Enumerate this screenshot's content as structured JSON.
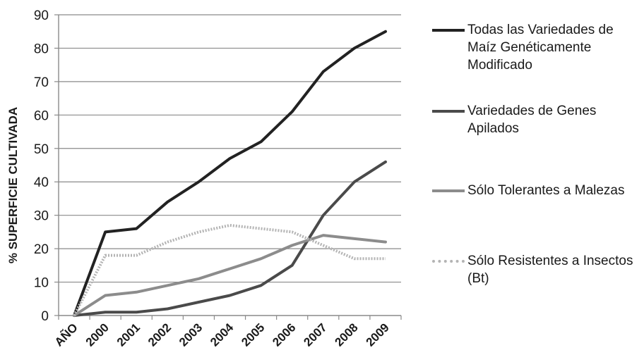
{
  "chart_data": {
    "type": "line",
    "title": "",
    "xlabel": "",
    "ylabel": "% SUPERFICIE CULTIVADA",
    "categories": [
      "AÑO",
      "2000",
      "2001",
      "2002",
      "2003",
      "2004",
      "2005",
      "2006",
      "2007",
      "2008",
      "2009"
    ],
    "ylim": [
      0,
      90
    ],
    "yticks": [
      0,
      10,
      20,
      30,
      40,
      50,
      60,
      70,
      80,
      90
    ],
    "grid": "horizontal",
    "legend_position": "right",
    "series": [
      {
        "name": "Todas las Variedades de Maíz Genéticamente Modificado",
        "color": "#222222",
        "style": "solid",
        "values": [
          0,
          25,
          26,
          34,
          40,
          47,
          52,
          61,
          73,
          80,
          85
        ]
      },
      {
        "name": "Variedades de Genes Apilados",
        "color": "#4a4a4a",
        "style": "solid",
        "values": [
          0,
          1,
          1,
          2,
          4,
          6,
          9,
          15,
          30,
          40,
          46
        ]
      },
      {
        "name": "Sólo Tolerantes a Malezas",
        "color": "#8c8c8c",
        "style": "solid",
        "values": [
          0,
          6,
          7,
          9,
          11,
          14,
          17,
          21,
          24,
          23,
          22
        ]
      },
      {
        "name": "Sólo Resistentes a Insectos (Bt)",
        "color": "#b4b4b4",
        "style": "dotted",
        "values": [
          0,
          18,
          18,
          22,
          25,
          27,
          26,
          25,
          21,
          17,
          17
        ]
      }
    ]
  }
}
